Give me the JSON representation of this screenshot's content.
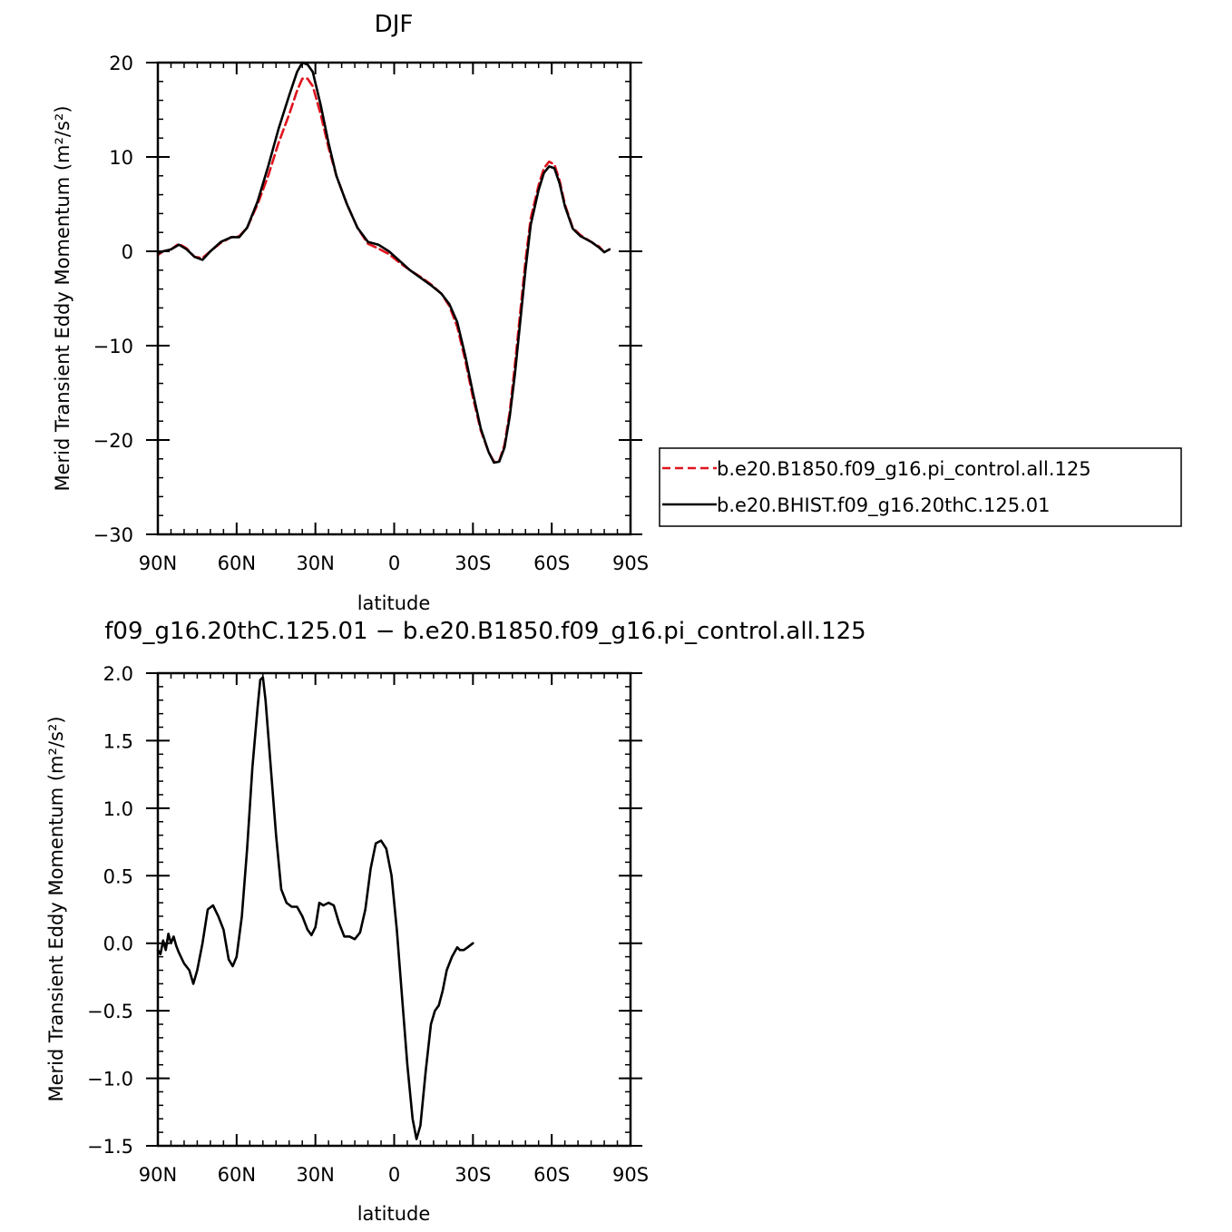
{
  "chart_data": [
    {
      "type": "line",
      "title": "DJF",
      "xlabel": "latitude",
      "ylabel": "Merid Transient Eddy Momentum (m²/s²)",
      "xlim": [
        -90,
        90
      ],
      "ylim": [
        -30,
        20
      ],
      "xticks": [
        {
          "value": -90,
          "label": "90N"
        },
        {
          "value": -60,
          "label": "60N"
        },
        {
          "value": -30,
          "label": "30N"
        },
        {
          "value": 0,
          "label": "0"
        },
        {
          "value": 30,
          "label": "30S"
        },
        {
          "value": 60,
          "label": "60S"
        },
        {
          "value": 90,
          "label": "90S"
        }
      ],
      "yticks": [
        {
          "value": 20,
          "label": "20"
        },
        {
          "value": 10,
          "label": "10"
        },
        {
          "value": 0,
          "label": "0"
        },
        {
          "value": -10,
          "label": "−10"
        },
        {
          "value": -20,
          "label": "−20"
        },
        {
          "value": -30,
          "label": "−30"
        }
      ],
      "legend_position": "right",
      "series": [
        {
          "name": "b.e20.B1850.f09_g16.pi_control.all.125",
          "color": "#e0141e",
          "dash": "dashed",
          "points": [
            [
              -90,
              -0.4
            ],
            [
              -88,
              0
            ],
            [
              -85,
              0.2
            ],
            [
              -82,
              0.8
            ],
            [
              -79,
              0.3
            ],
            [
              -76,
              -0.6
            ],
            [
              -73,
              -0.7
            ],
            [
              -70,
              0
            ],
            [
              -66,
              0.9
            ],
            [
              -62,
              1.5
            ],
            [
              -59,
              1.6
            ],
            [
              -56,
              2.5
            ],
            [
              -52,
              5
            ],
            [
              -48,
              8
            ],
            [
              -44,
              11.5
            ],
            [
              -40,
              14.5
            ],
            [
              -37,
              17
            ],
            [
              -35,
              18.3
            ],
            [
              -33,
              18.3
            ],
            [
              -31,
              17.5
            ],
            [
              -28,
              14.5
            ],
            [
              -25,
              11
            ],
            [
              -22,
              8
            ],
            [
              -18,
              5
            ],
            [
              -14,
              2.5
            ],
            [
              -10,
              0.8
            ],
            [
              -6,
              0.3
            ],
            [
              -2,
              -0.3
            ],
            [
              2,
              -1.2
            ],
            [
              6,
              -2
            ],
            [
              10,
              -2.7
            ],
            [
              14,
              -3.5
            ],
            [
              18,
              -4.5
            ],
            [
              21,
              -5.8
            ],
            [
              24,
              -8
            ],
            [
              27,
              -11.5
            ],
            [
              30,
              -15.5
            ],
            [
              33,
              -19
            ],
            [
              36,
              -21.3
            ],
            [
              38,
              -22.3
            ],
            [
              40,
              -22.2
            ],
            [
              42,
              -20.5
            ],
            [
              44,
              -17
            ],
            [
              46,
              -12
            ],
            [
              48,
              -6.5
            ],
            [
              50,
              -1
            ],
            [
              52,
              3.5
            ],
            [
              55,
              7
            ],
            [
              57,
              8.8
            ],
            [
              59,
              9.5
            ],
            [
              61,
              9.2
            ],
            [
              63,
              7.5
            ],
            [
              65,
              5
            ],
            [
              68,
              2.5
            ],
            [
              71,
              1.7
            ],
            [
              75,
              1
            ],
            [
              78,
              0.5
            ],
            [
              80,
              -0.1
            ],
            [
              82,
              0.2
            ]
          ]
        },
        {
          "name": "b.e20.BHIST.f09_g16.20thC.125.01",
          "color": "#000000",
          "dash": "solid",
          "points": [
            [
              -90,
              -0.2
            ],
            [
              -88,
              0
            ],
            [
              -85,
              0.2
            ],
            [
              -82,
              0.7
            ],
            [
              -79,
              0.2
            ],
            [
              -76,
              -0.6
            ],
            [
              -73,
              -0.9
            ],
            [
              -70,
              0
            ],
            [
              -66,
              1
            ],
            [
              -62,
              1.5
            ],
            [
              -59,
              1.5
            ],
            [
              -56,
              2.5
            ],
            [
              -52,
              5.3
            ],
            [
              -48,
              9
            ],
            [
              -44,
              13
            ],
            [
              -40,
              16.5
            ],
            [
              -37,
              19
            ],
            [
              -35,
              20
            ],
            [
              -33,
              19.8
            ],
            [
              -31,
              19
            ],
            [
              -28,
              15.5
            ],
            [
              -25,
              11.5
            ],
            [
              -22,
              8
            ],
            [
              -18,
              5
            ],
            [
              -14,
              2.5
            ],
            [
              -10,
              1
            ],
            [
              -6,
              0.7
            ],
            [
              -2,
              0
            ],
            [
              2,
              -1
            ],
            [
              6,
              -2
            ],
            [
              10,
              -2.8
            ],
            [
              14,
              -3.6
            ],
            [
              18,
              -4.5
            ],
            [
              21,
              -5.6
            ],
            [
              24,
              -7.5
            ],
            [
              27,
              -11
            ],
            [
              30,
              -15
            ],
            [
              33,
              -18.8
            ],
            [
              36,
              -21.3
            ],
            [
              38,
              -22.4
            ],
            [
              40,
              -22.3
            ],
            [
              42,
              -20.8
            ],
            [
              44,
              -17.5
            ],
            [
              46,
              -13
            ],
            [
              48,
              -7.5
            ],
            [
              50,
              -2
            ],
            [
              52,
              2.8
            ],
            [
              55,
              6.5
            ],
            [
              57,
              8.3
            ],
            [
              59,
              9
            ],
            [
              61,
              8.8
            ],
            [
              63,
              7.2
            ],
            [
              65,
              4.8
            ],
            [
              68,
              2.4
            ],
            [
              71,
              1.6
            ],
            [
              75,
              1
            ],
            [
              78,
              0.4
            ],
            [
              80,
              -0.1
            ],
            [
              82,
              0.2
            ]
          ]
        }
      ]
    },
    {
      "type": "line",
      "title": "f09_g16.20thC.125.01 − b.e20.B1850.f09_g16.pi_control.all.125",
      "xlabel": "latitude",
      "ylabel": "Merid Transient Eddy Momentum (m²/s²)",
      "xlim": [
        -90,
        90
      ],
      "ylim": [
        -1.5,
        2.0
      ],
      "xticks": [
        {
          "value": -90,
          "label": "90N"
        },
        {
          "value": -60,
          "label": "60N"
        },
        {
          "value": -30,
          "label": "30N"
        },
        {
          "value": 0,
          "label": "0"
        },
        {
          "value": 30,
          "label": "30S"
        },
        {
          "value": 60,
          "label": "60S"
        },
        {
          "value": 90,
          "label": "90S"
        }
      ],
      "yticks": [
        {
          "value": 2.0,
          "label": "2.0"
        },
        {
          "value": 1.5,
          "label": "1.5"
        },
        {
          "value": 1.0,
          "label": "1.0"
        },
        {
          "value": 0.5,
          "label": "0.5"
        },
        {
          "value": 0.0,
          "label": "0.0"
        },
        {
          "value": -0.5,
          "label": "−0.5"
        },
        {
          "value": -1.0,
          "label": "−1.0"
        },
        {
          "value": -1.5,
          "label": "−1.5"
        }
      ],
      "series": [
        {
          "color": "#000000",
          "dash": "solid",
          "points": [
            [
              -90,
              -0.05
            ],
            [
              -89,
              -0.08
            ],
            [
              -88,
              0.02
            ],
            [
              -87,
              -0.05
            ],
            [
              -86,
              0.07
            ],
            [
              -85,
              0
            ],
            [
              -84,
              0.05
            ],
            [
              -83,
              -0.02
            ],
            [
              -82,
              -0.07
            ],
            [
              -80,
              -0.15
            ],
            [
              -78,
              -0.2
            ],
            [
              -76.5,
              -0.3
            ],
            [
              -75,
              -0.2
            ],
            [
              -73,
              0
            ],
            [
              -71,
              0.25
            ],
            [
              -69,
              0.28
            ],
            [
              -67,
              0.2
            ],
            [
              -65,
              0.1
            ],
            [
              -63,
              -0.12
            ],
            [
              -61.5,
              -0.17
            ],
            [
              -60,
              -0.1
            ],
            [
              -58,
              0.2
            ],
            [
              -56,
              0.7
            ],
            [
              -54,
              1.3
            ],
            [
              -52,
              1.75
            ],
            [
              -51,
              1.95
            ],
            [
              -50,
              1.97
            ],
            [
              -49,
              1.8
            ],
            [
              -47,
              1.3
            ],
            [
              -45,
              0.8
            ],
            [
              -43,
              0.4
            ],
            [
              -41,
              0.3
            ],
            [
              -39,
              0.27
            ],
            [
              -37,
              0.27
            ],
            [
              -35,
              0.2
            ],
            [
              -33,
              0.1
            ],
            [
              -31.5,
              0.06
            ],
            [
              -30,
              0.12
            ],
            [
              -28.5,
              0.3
            ],
            [
              -27,
              0.28
            ],
            [
              -25,
              0.3
            ],
            [
              -23,
              0.28
            ],
            [
              -21,
              0.15
            ],
            [
              -19,
              0.05
            ],
            [
              -17,
              0.05
            ],
            [
              -15,
              0.03
            ],
            [
              -13,
              0.08
            ],
            [
              -11,
              0.25
            ],
            [
              -9,
              0.55
            ],
            [
              -7,
              0.74
            ],
            [
              -5,
              0.76
            ],
            [
              -3,
              0.7
            ],
            [
              -1,
              0.5
            ],
            [
              1,
              0.1
            ],
            [
              3,
              -0.4
            ],
            [
              5,
              -0.9
            ],
            [
              7,
              -1.3
            ],
            [
              8.5,
              -1.45
            ],
            [
              10,
              -1.35
            ],
            [
              12,
              -0.95
            ],
            [
              14,
              -0.6
            ],
            [
              15.5,
              -0.5
            ],
            [
              17,
              -0.46
            ],
            [
              18.5,
              -0.35
            ],
            [
              20,
              -0.2
            ],
            [
              22,
              -0.1
            ],
            [
              24,
              -0.03
            ],
            [
              25,
              -0.05
            ],
            [
              26.5,
              -0.05
            ],
            [
              28,
              -0.03
            ],
            [
              30,
              0
            ]
          ]
        }
      ]
    }
  ]
}
